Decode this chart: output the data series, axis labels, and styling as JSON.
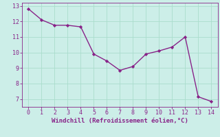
{
  "x": [
    0,
    1,
    2,
    3,
    4,
    5,
    6,
    7,
    8,
    9,
    10,
    11,
    12,
    13,
    14
  ],
  "y": [
    12.8,
    12.1,
    11.75,
    11.75,
    11.65,
    9.9,
    9.45,
    8.85,
    9.1,
    9.9,
    10.1,
    10.35,
    11.0,
    7.15,
    6.85
  ],
  "line_color": "#882288",
  "marker": "D",
  "marker_size": 2.2,
  "background_color": "#cceee8",
  "grid_color": "#aaddcc",
  "xlabel": "Windchill (Refroidissement éolien,°C)",
  "xlabel_color": "#882288",
  "tick_color": "#882288",
  "xlim": [
    -0.5,
    14.5
  ],
  "ylim": [
    6.5,
    13.2
  ],
  "yticks": [
    7,
    8,
    9,
    10,
    11,
    12,
    13
  ],
  "xticks": [
    0,
    1,
    2,
    3,
    4,
    5,
    6,
    7,
    8,
    9,
    10,
    11,
    12,
    13,
    14
  ],
  "label_fontsize": 6.5,
  "tick_fontsize": 6.0,
  "line_width": 1.0
}
